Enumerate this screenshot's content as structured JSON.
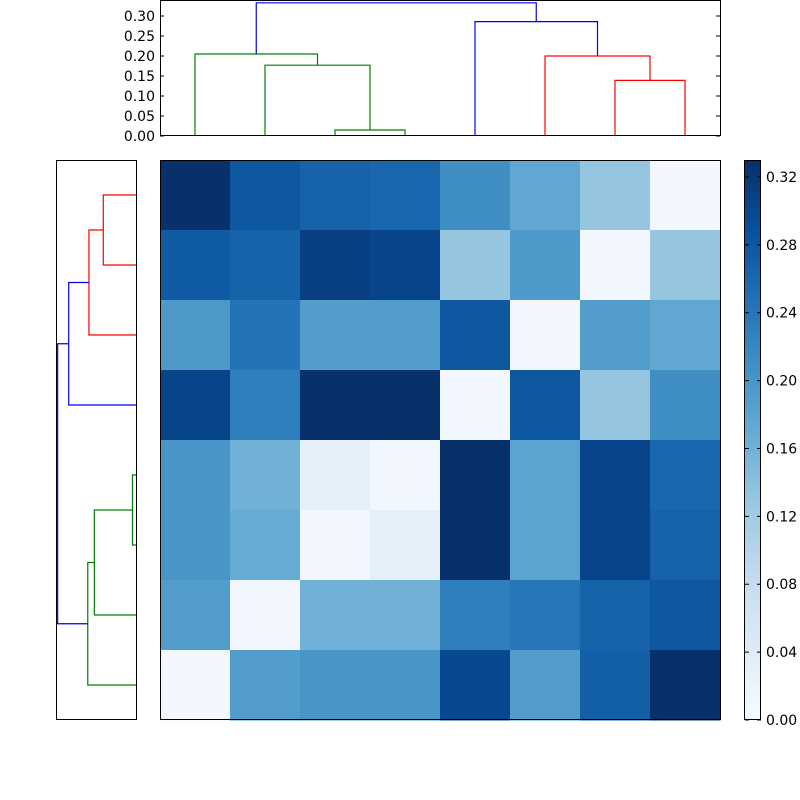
{
  "chart_data": {
    "type": "heatmap",
    "title": "",
    "xlabel": "",
    "ylabel": "",
    "heatmap": {
      "rows": 8,
      "cols": 8,
      "values": [
        [
          0.33,
          0.28,
          0.265,
          0.26,
          0.21,
          0.175,
          0.13,
          0.01
        ],
        [
          0.275,
          0.265,
          0.31,
          0.305,
          0.13,
          0.195,
          0.01,
          0.13
        ],
        [
          0.195,
          0.245,
          0.19,
          0.19,
          0.28,
          0.01,
          0.19,
          0.175
        ],
        [
          0.305,
          0.23,
          0.33,
          0.33,
          0.01,
          0.28,
          0.13,
          0.21
        ],
        [
          0.2,
          0.16,
          0.03,
          0.01,
          0.33,
          0.18,
          0.305,
          0.26
        ],
        [
          0.2,
          0.17,
          0.01,
          0.03,
          0.33,
          0.18,
          0.305,
          0.265
        ],
        [
          0.19,
          0.01,
          0.16,
          0.16,
          0.23,
          0.24,
          0.265,
          0.28
        ],
        [
          0.01,
          0.19,
          0.2,
          0.2,
          0.3,
          0.19,
          0.27,
          0.33
        ]
      ],
      "colormap": "Blues",
      "vmin": 0.0,
      "vmax": 0.33
    },
    "colorbar": {
      "ticks": [
        "0.00",
        "0.04",
        "0.08",
        "0.12",
        "0.16",
        "0.20",
        "0.24",
        "0.28",
        "0.32"
      ],
      "range": [
        0.0,
        0.33
      ]
    },
    "top_dendrogram": {
      "ylim": [
        0.0,
        0.34
      ],
      "ytick_labels": [
        "0.00",
        "0.05",
        "0.10",
        "0.15",
        "0.20",
        "0.25",
        "0.30"
      ],
      "leaves": 8,
      "links": [
        {
          "left": 2.5,
          "right": 3.5,
          "height": 0.015,
          "left_h": 0.0,
          "right_h": 0.0,
          "color": "#008000"
        },
        {
          "left": 1.5,
          "right": 3.0,
          "height": 0.177,
          "left_h": 0.0,
          "right_h": 0.015,
          "color": "#008000"
        },
        {
          "left": 0.5,
          "right": 2.25,
          "height": 0.205,
          "left_h": 0.0,
          "right_h": 0.177,
          "color": "#008000"
        },
        {
          "left": 6.5,
          "right": 7.5,
          "height": 0.139,
          "left_h": 0.0,
          "right_h": 0.0,
          "color": "#ff0000"
        },
        {
          "left": 5.5,
          "right": 7.0,
          "height": 0.2,
          "left_h": 0.0,
          "right_h": 0.139,
          "color": "#ff0000"
        },
        {
          "left": 4.5,
          "right": 6.25,
          "height": 0.286,
          "left_h": 0.0,
          "right_h": 0.2,
          "color": "#0000ff"
        },
        {
          "left": 1.375,
          "right": 5.375,
          "height": 0.333,
          "left_h": 0.205,
          "right_h": 0.286,
          "color": "#0000ff"
        }
      ]
    },
    "left_dendrogram": {
      "xlim": [
        0.0,
        0.34
      ],
      "leaves": 8,
      "links": [
        {
          "a": 0.5,
          "b": 1.5,
          "height": 0.139,
          "a_h": 0.0,
          "b_h": 0.0,
          "color": "#ff0000"
        },
        {
          "a": 1.0,
          "b": 2.5,
          "height": 0.2,
          "a_h": 0.139,
          "b_h": 0.0,
          "color": "#ff0000"
        },
        {
          "a": 1.75,
          "b": 3.5,
          "height": 0.286,
          "a_h": 0.2,
          "b_h": 0.0,
          "color": "#0000ff"
        },
        {
          "a": 4.5,
          "b": 5.5,
          "height": 0.015,
          "a_h": 0.0,
          "b_h": 0.0,
          "color": "#008000"
        },
        {
          "a": 5.0,
          "b": 6.5,
          "height": 0.177,
          "a_h": 0.015,
          "b_h": 0.0,
          "color": "#008000"
        },
        {
          "a": 5.75,
          "b": 7.5,
          "height": 0.205,
          "a_h": 0.177,
          "b_h": 0.0,
          "color": "#008000"
        },
        {
          "a": 2.625,
          "b": 6.625,
          "height": 0.333,
          "a_h": 0.286,
          "b_h": 0.205,
          "color": "#0000ff"
        }
      ]
    }
  }
}
